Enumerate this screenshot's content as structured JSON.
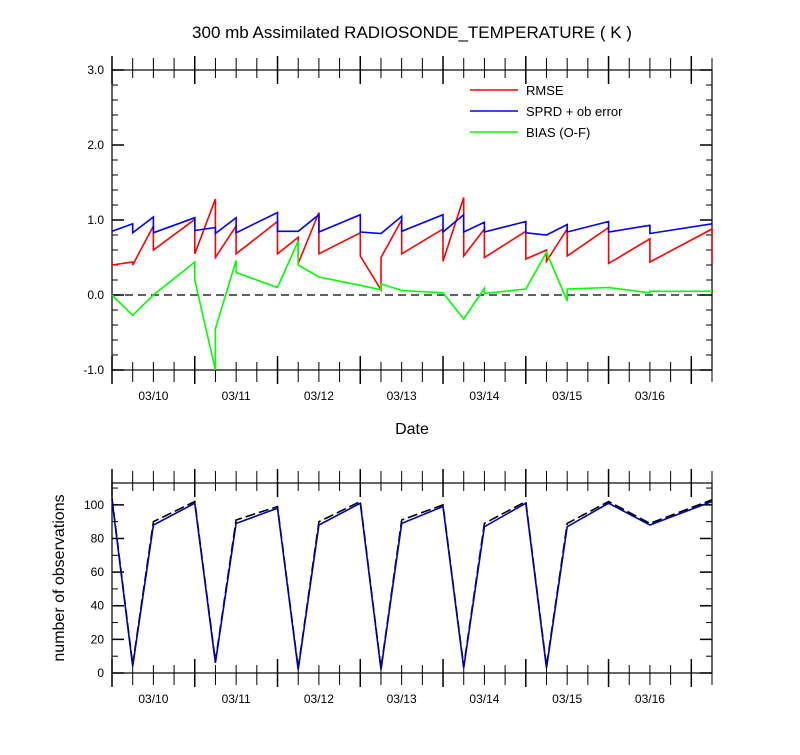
{
  "chart_data": [
    {
      "type": "line",
      "title": "300 mb Assimilated RADIOSONDE_TEMPERATURE ( K )",
      "xlabel": "Date",
      "ylabel": "",
      "ylim": [
        -1.0,
        3.0
      ],
      "y_ticks": [
        -1.0,
        0.0,
        1.0,
        2.0,
        3.0
      ],
      "y_tick_labels": [
        "-1.0",
        "0.0",
        "1.0",
        "2.0",
        "3.0"
      ],
      "xlim": [
        "2011-03-09 12:00",
        "2011-03-16 18:00"
      ],
      "x_tick_labels": [
        "03/10",
        "03/11",
        "03/12",
        "03/13",
        "03/14",
        "03/15",
        "03/16"
      ],
      "grid": false,
      "legend_position": "top-right",
      "reference_line": 0.0,
      "series": [
        {
          "name": "RMSE",
          "color": "#ff0000",
          "x": [
            "2011-03-09 12:00",
            "2011-03-09 18:00",
            "2011-03-09 18:00",
            "2011-03-10 00:00",
            "2011-03-10 00:00",
            "2011-03-10 12:00",
            "2011-03-10 12:00",
            "2011-03-10 18:00",
            "2011-03-10 18:00",
            "2011-03-11 00:00",
            "2011-03-11 00:00",
            "2011-03-11 12:00",
            "2011-03-11 12:00",
            "2011-03-11 18:00",
            "2011-03-11 18:00",
            "2011-03-12 00:00",
            "2011-03-12 00:00",
            "2011-03-12 12:00",
            "2011-03-12 12:00",
            "2011-03-12 18:00",
            "2011-03-12 18:00",
            "2011-03-13 00:00",
            "2011-03-13 00:00",
            "2011-03-13 12:00",
            "2011-03-13 12:00",
            "2011-03-13 18:00",
            "2011-03-13 18:00",
            "2011-03-14 00:00",
            "2011-03-14 00:00",
            "2011-03-14 12:00",
            "2011-03-14 12:00",
            "2011-03-14 18:00",
            "2011-03-14 18:00",
            "2011-03-15 00:00",
            "2011-03-15 00:00",
            "2011-03-15 12:00",
            "2011-03-15 12:00",
            "2011-03-16 00:00",
            "2011-03-16 00:00",
            "2011-03-16 18:00",
            "2011-03-16 18:00"
          ],
          "y": [
            0.4,
            0.44,
            0.4,
            0.92,
            0.6,
            1.01,
            0.55,
            1.28,
            0.5,
            0.92,
            0.55,
            0.98,
            0.55,
            0.77,
            0.42,
            1.1,
            0.55,
            0.83,
            0.52,
            0.07,
            0.5,
            1.0,
            0.55,
            0.88,
            0.45,
            1.3,
            0.52,
            0.88,
            0.5,
            0.85,
            0.48,
            0.6,
            0.45,
            0.88,
            0.52,
            0.9,
            0.42,
            0.75,
            0.44,
            0.88,
            0.42
          ]
        },
        {
          "name": "SPRD + ob error",
          "color": "#0000ff",
          "x": [
            "2011-03-09 12:00",
            "2011-03-09 18:00",
            "2011-03-09 18:00",
            "2011-03-10 00:00",
            "2011-03-10 00:00",
            "2011-03-10 12:00",
            "2011-03-10 12:00",
            "2011-03-10 18:00",
            "2011-03-10 18:00",
            "2011-03-11 00:00",
            "2011-03-11 00:00",
            "2011-03-11 12:00",
            "2011-03-11 12:00",
            "2011-03-11 18:00",
            "2011-03-11 18:00",
            "2011-03-12 00:00",
            "2011-03-12 00:00",
            "2011-03-12 12:00",
            "2011-03-12 12:00",
            "2011-03-12 18:00",
            "2011-03-12 18:00",
            "2011-03-13 00:00",
            "2011-03-13 00:00",
            "2011-03-13 12:00",
            "2011-03-13 12:00",
            "2011-03-13 18:00",
            "2011-03-13 18:00",
            "2011-03-14 00:00",
            "2011-03-14 00:00",
            "2011-03-14 12:00",
            "2011-03-14 12:00",
            "2011-03-14 18:00",
            "2011-03-14 18:00",
            "2011-03-15 00:00",
            "2011-03-15 00:00",
            "2011-03-15 12:00",
            "2011-03-15 12:00",
            "2011-03-16 00:00",
            "2011-03-16 00:00",
            "2011-03-16 18:00"
          ],
          "y": [
            0.85,
            0.95,
            0.83,
            1.04,
            0.83,
            1.03,
            0.86,
            0.9,
            0.82,
            1.03,
            0.83,
            1.1,
            0.85,
            0.85,
            0.85,
            1.07,
            0.84,
            1.07,
            0.84,
            0.82,
            0.82,
            1.05,
            0.85,
            1.07,
            0.84,
            1.07,
            0.84,
            0.97,
            0.84,
            0.98,
            0.83,
            0.8,
            0.8,
            0.94,
            0.84,
            0.98,
            0.84,
            0.93,
            0.82,
            0.95
          ]
        },
        {
          "name": "BIAS (O-F)",
          "color": "#00ff00",
          "x": [
            "2011-03-09 12:00",
            "2011-03-09 18:00",
            "2011-03-10 00:00",
            "2011-03-10 12:00",
            "2011-03-10 12:00",
            "2011-03-10 18:00",
            "2011-03-10 18:00",
            "2011-03-11 00:00",
            "2011-03-11 00:00",
            "2011-03-11 12:00",
            "2011-03-11 18:00",
            "2011-03-11 18:00",
            "2011-03-12 00:00",
            "2011-03-12 12:00",
            "2011-03-12 18:00",
            "2011-03-12 18:00",
            "2011-03-13 00:00",
            "2011-03-13 12:00",
            "2011-03-13 18:00",
            "2011-03-14 00:00",
            "2011-03-14 00:00",
            "2011-03-14 12:00",
            "2011-03-14 18:00",
            "2011-03-15 00:00",
            "2011-03-15 00:00",
            "2011-03-15 12:00",
            "2011-03-16 00:00",
            "2011-03-16 00:00",
            "2011-03-16 18:00"
          ],
          "y": [
            0.0,
            -0.27,
            0.0,
            0.44,
            0.2,
            -1.0,
            -0.45,
            0.46,
            0.3,
            0.1,
            0.72,
            0.4,
            0.24,
            0.13,
            0.07,
            0.15,
            0.06,
            0.03,
            -0.32,
            0.09,
            0.02,
            0.08,
            0.57,
            -0.08,
            0.08,
            0.1,
            0.03,
            0.05,
            0.05
          ]
        }
      ]
    },
    {
      "type": "line",
      "title": "",
      "xlabel": "",
      "ylabel": "number of observations",
      "ylim": [
        0,
        113
      ],
      "y_ticks": [
        0,
        20,
        40,
        60,
        80,
        100
      ],
      "y_tick_labels": [
        "0",
        "20",
        "40",
        "60",
        "80",
        "100"
      ],
      "xlim": [
        "2011-03-09 12:00",
        "2011-03-16 18:00"
      ],
      "x_tick_labels": [
        "03/10",
        "03/11",
        "03/12",
        "03/13",
        "03/14",
        "03/15",
        "03/16"
      ],
      "grid": false,
      "legend_position": "none",
      "series": [
        {
          "name": "",
          "style": "dashed",
          "color": "#000000",
          "x": [
            "2011-03-09 12:00",
            "2011-03-09 18:00",
            "2011-03-10 00:00",
            "2011-03-10 12:00",
            "2011-03-10 18:00",
            "2011-03-11 00:00",
            "2011-03-11 12:00",
            "2011-03-11 18:00",
            "2011-03-12 00:00",
            "2011-03-12 12:00",
            "2011-03-12 18:00",
            "2011-03-13 00:00",
            "2011-03-13 12:00",
            "2011-03-13 18:00",
            "2011-03-14 00:00",
            "2011-03-14 12:00",
            "2011-03-14 18:00",
            "2011-03-15 00:00",
            "2011-03-15 12:00",
            "2011-03-16 00:00",
            "2011-03-16 18:00"
          ],
          "y": [
            104,
            5,
            90,
            102,
            7,
            91,
            99,
            3,
            90,
            102,
            3,
            91,
            100,
            4,
            89,
            102,
            4,
            89,
            102,
            89,
            103
          ]
        },
        {
          "name": "",
          "style": "solid",
          "color": "#0000aa",
          "x": [
            "2011-03-09 12:00",
            "2011-03-09 18:00",
            "2011-03-10 00:00",
            "2011-03-10 12:00",
            "2011-03-10 18:00",
            "2011-03-11 00:00",
            "2011-03-11 12:00",
            "2011-03-11 18:00",
            "2011-03-12 00:00",
            "2011-03-12 12:00",
            "2011-03-12 18:00",
            "2011-03-13 00:00",
            "2011-03-13 12:00",
            "2011-03-13 18:00",
            "2011-03-14 00:00",
            "2011-03-14 12:00",
            "2011-03-14 18:00",
            "2011-03-15 00:00",
            "2011-03-15 12:00",
            "2011-03-16 00:00",
            "2011-03-16 18:00"
          ],
          "y": [
            103,
            4,
            88,
            101,
            6,
            89,
            98,
            2,
            88,
            101,
            2,
            89,
            99,
            3,
            87,
            101,
            3,
            87,
            101,
            88,
            102
          ]
        }
      ]
    }
  ]
}
